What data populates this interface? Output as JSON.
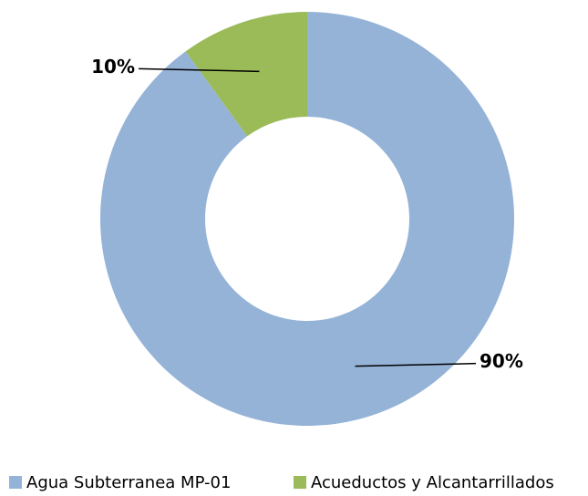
{
  "chart_data": {
    "type": "donut",
    "categories": [
      "Agua Subterranea MP-01",
      "Acueductos y Alcantarrillados"
    ],
    "values": [
      90,
      10
    ],
    "value_labels": [
      "90%",
      "10%"
    ],
    "colors": [
      "#95b3d7",
      "#9bbb59"
    ],
    "legend": "bottom"
  }
}
